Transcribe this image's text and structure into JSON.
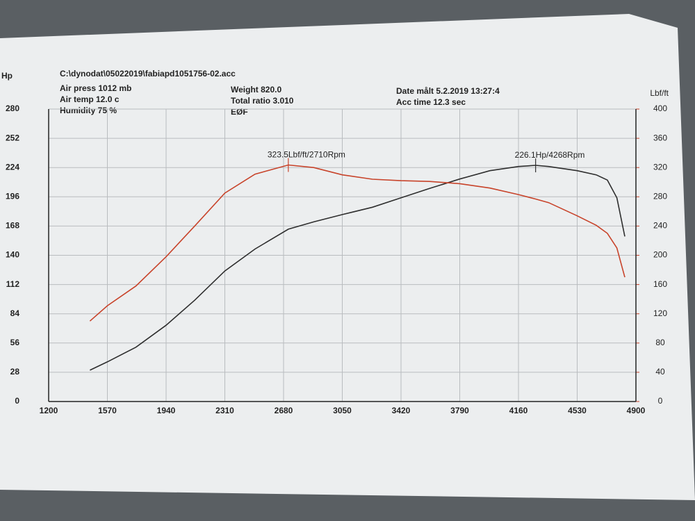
{
  "chart_data": {
    "type": "line",
    "title": "C:\\dynodat\\05022019\\fabiapd1051756-02.acc",
    "info": [
      [
        "Air press  1012 mb",
        "Air temp   12.0 c",
        "Humidity    75 %"
      ],
      [
        "Weight   820.0",
        "Total ratio 3.010",
        "EØF"
      ],
      [
        "Date målt 5.2.2019 13:27:4",
        "Acc time  12.3 sec"
      ]
    ],
    "y_label": "Hp",
    "y2_label": "Lbf/ft",
    "x": [
      1460,
      1570,
      1750,
      1940,
      2120,
      2310,
      2500,
      2710,
      2870,
      3050,
      3240,
      3420,
      3600,
      3790,
      3980,
      4160,
      4268,
      4350,
      4530,
      4650,
      4720,
      4780,
      4830
    ],
    "series": [
      {
        "name": "Hp",
        "color": "#2e2e2e",
        "axis": "y",
        "values": [
          30,
          38,
          52,
          73,
          97,
          125,
          146,
          165,
          172,
          179,
          186,
          195,
          204,
          213,
          221,
          225,
          226.1,
          225,
          221,
          217,
          212,
          195,
          158
        ]
      },
      {
        "name": "Lbf/ft",
        "color": "#c8432a",
        "axis": "y2",
        "values": [
          110,
          131,
          158,
          198,
          240,
          285,
          311,
          323.5,
          320,
          310,
          304,
          302,
          301,
          298,
          292,
          283,
          277,
          272,
          254,
          241,
          230,
          210,
          170
        ]
      }
    ],
    "annotations": [
      "226.1Hp/4268Rpm",
      "323.5Lbf/ft/2710Rpm"
    ],
    "xlim": [
      1200,
      4900
    ],
    "xticks": [
      1200,
      1570,
      1940,
      2310,
      2680,
      3050,
      3420,
      3790,
      4160,
      4530,
      4900
    ],
    "ylim": [
      0,
      280
    ],
    "yticks": [
      0,
      28,
      56,
      84,
      112,
      140,
      168,
      196,
      224,
      252,
      280
    ],
    "y2lim": [
      0,
      400
    ],
    "y2ticks": [
      0,
      40,
      80,
      120,
      160,
      200,
      240,
      280,
      320,
      360,
      400
    ],
    "grid": true
  }
}
